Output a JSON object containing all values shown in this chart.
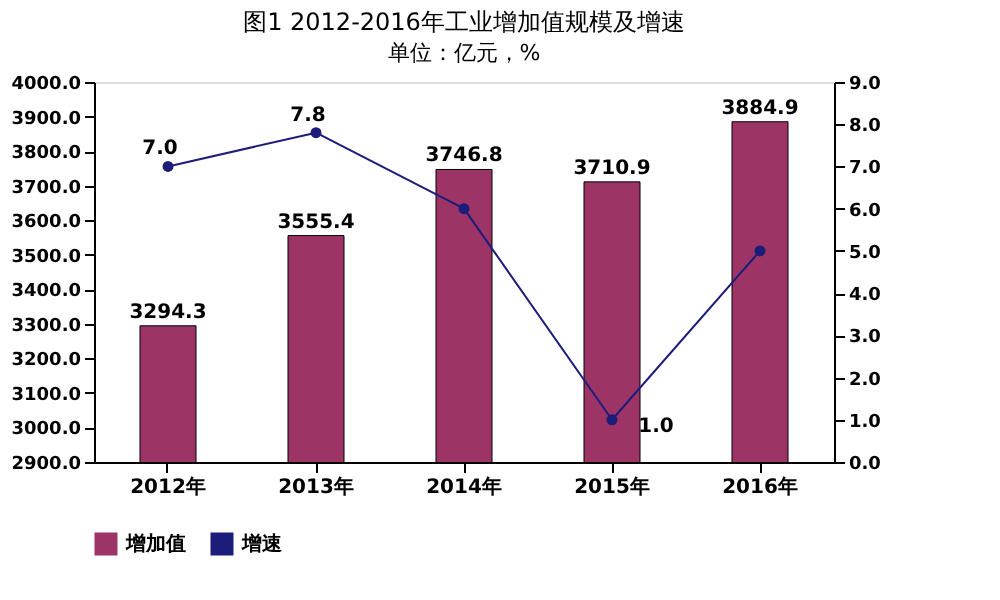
{
  "chart_data": {
    "type": "bar",
    "title": "图1  2012-2016年工业增加值规模及增速",
    "subtitle": "单位：亿元，%",
    "categories": [
      "2012年",
      "2013年",
      "2014年",
      "2015年",
      "2016年"
    ],
    "series": [
      {
        "name": "增加值",
        "color": "#9c3566",
        "values": [
          3294.3,
          3555.4,
          3746.8,
          3710.9,
          3884.9
        ],
        "value_labels": [
          "3294.3",
          "3555.4",
          "3746.8",
          "3710.9",
          "3884.9"
        ]
      },
      {
        "name": "增速",
        "type": "line",
        "axis": "y2",
        "color": "#1c1c7a",
        "marker": "circle",
        "values": [
          7.0,
          7.8,
          6.0,
          1.0,
          5.0
        ],
        "value_labels": [
          "7.0",
          "7.8",
          null,
          "1.0",
          null
        ]
      }
    ],
    "ylim": [
      2900,
      4000
    ],
    "yticks": [
      {
        "value": 2900,
        "label": "2900.0"
      },
      {
        "value": 3000,
        "label": "3000.0"
      },
      {
        "value": 3100,
        "label": "3100.0"
      },
      {
        "value": 3200,
        "label": "3200.0"
      },
      {
        "value": 3300,
        "label": "3300.0"
      },
      {
        "value": 3400,
        "label": "3400.0"
      },
      {
        "value": 3500,
        "label": "3500.0"
      },
      {
        "value": 3600,
        "label": "3600.0"
      },
      {
        "value": 3700,
        "label": "3700.0"
      },
      {
        "value": 3800,
        "label": "3800.0"
      },
      {
        "value": 3900,
        "label": "3900.0"
      },
      {
        "value": 4000,
        "label": "4000.0"
      }
    ],
    "y2lim": [
      0,
      9
    ],
    "y2ticks": [
      {
        "value": 0,
        "label": "0.0"
      },
      {
        "value": 1,
        "label": "1.0"
      },
      {
        "value": 2,
        "label": "2.0"
      },
      {
        "value": 3,
        "label": "3.0"
      },
      {
        "value": 4,
        "label": "4.0"
      },
      {
        "value": 5,
        "label": "5.0"
      },
      {
        "value": 6,
        "label": "6.0"
      },
      {
        "value": 7,
        "label": "7.0"
      },
      {
        "value": 8,
        "label": "8.0"
      },
      {
        "value": 9,
        "label": "9.0"
      }
    ],
    "grid": false,
    "legend": "bottom"
  }
}
